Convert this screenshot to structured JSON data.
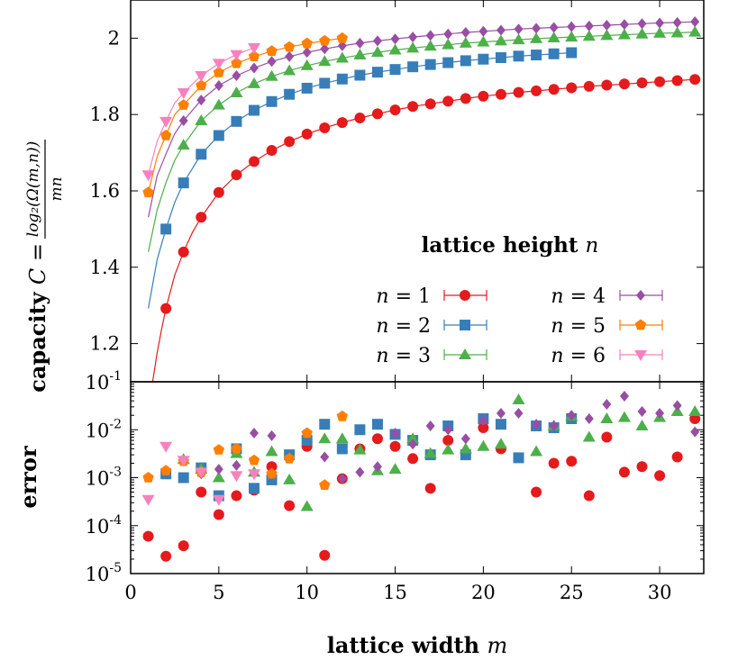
{
  "chart_data": [
    {
      "type": "line",
      "panel": "capacity",
      "ylabel_bold": "capacity",
      "ylabel_math": "C =",
      "ylabel_numerator": "log₂(Ω(m,n))",
      "ylabel_denominator": "mn",
      "xlim": [
        0,
        32.5
      ],
      "ylim": [
        1.1,
        2.1
      ],
      "yticks": [
        1.2,
        1.4,
        1.6,
        1.8,
        2
      ],
      "ytick_labels": [
        "1.2",
        "1.4",
        "1.6",
        "1.8",
        "2"
      ],
      "legend_title": "lattice height",
      "legend_title_var": "n",
      "legend_placement": "lower-right",
      "series": [
        {
          "name": "n = 1",
          "var": "n",
          "eq": "= 1",
          "color": "#e41a1c",
          "marker": "circle",
          "line_x": [
            1,
            1.25,
            1.5,
            1.75,
            2,
            2.5,
            3,
            3.5,
            4,
            5,
            6,
            7,
            8,
            9,
            10,
            11,
            12,
            13,
            14,
            15,
            16,
            17,
            18,
            19,
            20,
            21,
            22,
            23,
            24,
            25,
            26,
            27,
            28,
            29,
            30,
            31,
            32
          ],
          "line_y": [
            1.0,
            1.102,
            1.176,
            1.236,
            1.292,
            1.379,
            1.44,
            1.491,
            1.531,
            1.596,
            1.642,
            1.677,
            1.706,
            1.729,
            1.749,
            1.765,
            1.779,
            1.791,
            1.802,
            1.812,
            1.821,
            1.828,
            1.835,
            1.842,
            1.848,
            1.853,
            1.858,
            1.862,
            1.866,
            1.87,
            1.874,
            1.877,
            1.88,
            1.883,
            1.886,
            1.889,
            1.892
          ],
          "x": [
            2,
            3,
            4,
            5,
            6,
            7,
            8,
            9,
            10,
            11,
            12,
            13,
            14,
            15,
            16,
            17,
            18,
            19,
            20,
            21,
            22,
            23,
            24,
            25,
            26,
            27,
            28,
            29,
            30,
            31,
            32
          ],
          "y": [
            1.292,
            1.44,
            1.531,
            1.596,
            1.642,
            1.677,
            1.706,
            1.729,
            1.749,
            1.765,
            1.779,
            1.791,
            1.802,
            1.812,
            1.821,
            1.828,
            1.835,
            1.842,
            1.848,
            1.853,
            1.858,
            1.862,
            1.866,
            1.87,
            1.874,
            1.877,
            1.88,
            1.883,
            1.886,
            1.889,
            1.892
          ]
        },
        {
          "name": "n = 2",
          "var": "n",
          "eq": "= 2",
          "color": "#377eb8",
          "marker": "square",
          "line_x": [
            1,
            1.5,
            2,
            2.5,
            3,
            4,
            5,
            6,
            7,
            8,
            9,
            10,
            11,
            12,
            13,
            14,
            15,
            16,
            17,
            18,
            19,
            20,
            21,
            22,
            23,
            24,
            25
          ],
          "line_y": [
            1.292,
            1.42,
            1.5,
            1.57,
            1.621,
            1.696,
            1.745,
            1.782,
            1.811,
            1.834,
            1.853,
            1.869,
            1.882,
            1.893,
            1.903,
            1.911,
            1.918,
            1.925,
            1.931,
            1.936,
            1.941,
            1.945,
            1.949,
            1.953,
            1.956,
            1.959,
            1.962
          ],
          "x": [
            2,
            3,
            4,
            5,
            6,
            7,
            8,
            9,
            10,
            11,
            12,
            13,
            14,
            15,
            16,
            17,
            18,
            19,
            20,
            21,
            22,
            23,
            24,
            25
          ],
          "y": [
            1.5,
            1.621,
            1.696,
            1.745,
            1.782,
            1.811,
            1.834,
            1.853,
            1.869,
            1.882,
            1.893,
            1.903,
            1.911,
            1.918,
            1.925,
            1.931,
            1.936,
            1.941,
            1.945,
            1.949,
            1.953,
            1.956,
            1.959,
            1.962
          ]
        },
        {
          "name": "n = 3",
          "var": "n",
          "eq": "= 3",
          "color": "#4daf4a",
          "marker": "triangle-up",
          "line_x": [
            1,
            1.5,
            2,
            2.5,
            3,
            4,
            5,
            6,
            7,
            8,
            9,
            10,
            11,
            12,
            13,
            14,
            15,
            16,
            17,
            18,
            19,
            20,
            21,
            22,
            23,
            24,
            25,
            26,
            27,
            28,
            29,
            30,
            31,
            32
          ],
          "line_y": [
            1.44,
            1.55,
            1.621,
            1.68,
            1.72,
            1.784,
            1.825,
            1.857,
            1.881,
            1.9,
            1.915,
            1.928,
            1.939,
            1.948,
            1.956,
            1.963,
            1.969,
            1.974,
            1.979,
            1.983,
            1.987,
            1.99,
            1.993,
            1.996,
            1.999,
            2.001,
            2.003,
            2.005,
            2.007,
            2.009,
            2.011,
            2.013,
            2.014,
            2.016
          ],
          "x": [
            3,
            4,
            5,
            6,
            7,
            8,
            9,
            10,
            11,
            12,
            13,
            14,
            15,
            16,
            17,
            18,
            19,
            20,
            21,
            22,
            23,
            24,
            25,
            26,
            27,
            28,
            29,
            30,
            31,
            32
          ],
          "y": [
            1.72,
            1.784,
            1.825,
            1.857,
            1.881,
            1.9,
            1.915,
            1.928,
            1.939,
            1.948,
            1.956,
            1.963,
            1.969,
            1.974,
            1.979,
            1.983,
            1.987,
            1.99,
            1.993,
            1.996,
            1.999,
            2.001,
            2.003,
            2.005,
            2.007,
            2.009,
            2.011,
            2.013,
            2.014,
            2.016
          ]
        },
        {
          "name": "n = 4",
          "var": "n",
          "eq": "= 4",
          "color": "#984ea3",
          "marker": "diamond",
          "line_x": [
            1,
            1.5,
            2,
            2.5,
            3,
            4,
            5,
            6,
            7,
            8,
            9,
            10,
            11,
            12,
            13,
            14,
            15,
            16,
            17,
            18,
            19,
            20,
            21,
            22,
            23,
            24,
            25,
            26,
            27,
            28,
            29,
            30,
            31,
            32
          ],
          "line_y": [
            1.531,
            1.64,
            1.696,
            1.75,
            1.784,
            1.838,
            1.876,
            1.902,
            1.922,
            1.939,
            1.952,
            1.963,
            1.972,
            1.98,
            1.987,
            1.993,
            1.998,
            2.003,
            2.007,
            2.011,
            2.015,
            2.018,
            2.021,
            2.024,
            2.026,
            2.028,
            2.03,
            2.032,
            2.034,
            2.036,
            2.038,
            2.04,
            2.041,
            2.043
          ],
          "x": [
            3,
            4,
            5,
            6,
            7,
            8,
            9,
            10,
            11,
            12,
            13,
            14,
            15,
            16,
            17,
            18,
            19,
            20,
            21,
            22,
            23,
            24,
            25,
            26,
            27,
            28,
            29,
            30,
            31,
            32
          ],
          "y": [
            1.784,
            1.838,
            1.876,
            1.902,
            1.922,
            1.939,
            1.952,
            1.963,
            1.972,
            1.98,
            1.987,
            1.993,
            1.998,
            2.003,
            2.007,
            2.011,
            2.015,
            2.018,
            2.021,
            2.024,
            2.026,
            2.028,
            2.03,
            2.032,
            2.034,
            2.036,
            2.038,
            2.04,
            2.041,
            2.043
          ]
        },
        {
          "name": "n = 5",
          "var": "n",
          "eq": "= 5",
          "color": "#ff7f00",
          "marker": "pentagon",
          "line_x": [
            1,
            1.5,
            2,
            2.5,
            3,
            4,
            5,
            6,
            7,
            8,
            9,
            10,
            11,
            12
          ],
          "line_y": [
            1.596,
            1.69,
            1.745,
            1.8,
            1.825,
            1.876,
            1.91,
            1.934,
            1.952,
            1.966,
            1.977,
            1.986,
            1.993,
            2.0
          ],
          "x": [
            1,
            2,
            3,
            4,
            5,
            6,
            7,
            8,
            9,
            10,
            11,
            12
          ],
          "y": [
            1.596,
            1.745,
            1.825,
            1.876,
            1.91,
            1.934,
            1.952,
            1.966,
            1.977,
            1.986,
            1.993,
            2.0
          ]
        },
        {
          "name": "n = 6",
          "var": "n",
          "eq": "= 6",
          "color": "#f781bf",
          "marker": "triangle-down",
          "line_x": [
            1,
            1.5,
            2,
            2.5,
            3,
            4,
            5,
            6,
            7
          ],
          "line_y": [
            1.642,
            1.73,
            1.782,
            1.83,
            1.857,
            1.902,
            1.934,
            1.957,
            1.975
          ],
          "x": [
            1,
            2,
            3,
            4,
            5,
            6,
            7
          ],
          "y": [
            1.642,
            1.782,
            1.857,
            1.902,
            1.934,
            1.957,
            1.975
          ]
        }
      ]
    },
    {
      "type": "scatter",
      "panel": "error",
      "ylabel": "error",
      "xlabel": "lattice width",
      "xlabel_var": "m",
      "yscale": "log",
      "xlim": [
        0,
        32.5
      ],
      "ylim": [
        1e-05,
        0.1
      ],
      "xticks": [
        0,
        5,
        10,
        15,
        20,
        25,
        30
      ],
      "xtick_labels": [
        "0",
        "5",
        "10",
        "15",
        "20",
        "25",
        "30"
      ],
      "yticks": [
        1e-05,
        0.0001,
        0.001,
        0.01,
        0.1
      ],
      "ytick_base": "10",
      "ytick_exponents": [
        "-5",
        "-4",
        "-3",
        "-2",
        "-1"
      ],
      "series": [
        {
          "name": "n = 1",
          "color": "#e41a1c",
          "marker": "circle",
          "x": [
            1,
            2,
            3,
            4,
            5,
            6,
            7,
            8,
            9,
            10,
            11,
            12,
            13,
            14,
            15,
            16,
            17,
            18,
            20,
            21,
            23,
            24,
            25,
            26,
            27,
            28,
            29,
            30,
            31,
            32
          ],
          "y": [
            6e-05,
            2.3e-05,
            3.8e-05,
            0.0005,
            0.00017,
            0.00042,
            0.00055,
            0.0017,
            0.00026,
            0.0045,
            2.4e-05,
            0.00095,
            0.004,
            0.0065,
            0.0045,
            0.0025,
            0.0006,
            0.006,
            0.011,
            0.004,
            0.0005,
            0.002,
            0.0022,
            0.00042,
            0.007,
            0.0013,
            0.0017,
            0.0011,
            0.0027,
            0.017
          ]
        },
        {
          "name": "n = 2",
          "color": "#377eb8",
          "marker": "square",
          "x": [
            2,
            3,
            4,
            5,
            6,
            7,
            8,
            9,
            10,
            11,
            12,
            13,
            14,
            15,
            16,
            17,
            18,
            19,
            20,
            21,
            22,
            23,
            24,
            25
          ],
          "y": [
            0.0012,
            0.001,
            0.0016,
            0.00042,
            0.004,
            0.0006,
            0.0009,
            0.003,
            0.006,
            0.013,
            0.004,
            0.01,
            0.013,
            0.008,
            0.006,
            0.003,
            0.012,
            0.003,
            0.017,
            0.013,
            0.0026,
            0.012,
            0.011,
            0.017
          ]
        },
        {
          "name": "n = 3",
          "color": "#4daf4a",
          "marker": "triangle-up",
          "x": [
            3,
            4,
            5,
            6,
            7,
            8,
            9,
            10,
            11,
            12,
            13,
            14,
            15,
            16,
            17,
            18,
            19,
            20,
            21,
            22,
            23,
            24,
            25,
            26,
            27,
            28,
            29,
            30,
            31,
            32
          ],
          "y": [
            0.0024,
            0.0015,
            0.001,
            0.0032,
            0.0013,
            0.0035,
            0.0009,
            0.00025,
            0.0065,
            0.0065,
            0.0038,
            0.0014,
            0.0015,
            0.0065,
            0.0032,
            0.0038,
            0.004,
            0.0045,
            0.005,
            0.042,
            0.0035,
            0.012,
            0.019,
            0.007,
            0.017,
            0.018,
            0.012,
            0.018,
            0.024,
            0.024
          ]
        },
        {
          "name": "n = 4",
          "color": "#984ea3",
          "marker": "diamond",
          "x": [
            2,
            3,
            4,
            5,
            6,
            7,
            8,
            9,
            10,
            11,
            12,
            13,
            14,
            15,
            16,
            17,
            18,
            19,
            20,
            21,
            22,
            23,
            24,
            25,
            26,
            27,
            28,
            29,
            30,
            31,
            32
          ],
          "y": [
            0.0014,
            0.0022,
            0.0012,
            0.0015,
            0.0018,
            0.0085,
            0.0075,
            0.0025,
            0.0085,
            0.0027,
            0.00095,
            0.0013,
            0.0017,
            0.0085,
            0.005,
            0.012,
            0.01,
            0.0065,
            0.0155,
            0.022,
            0.022,
            0.013,
            0.012,
            0.02,
            0.017,
            0.034,
            0.05,
            0.024,
            0.022,
            0.032,
            0.009
          ]
        },
        {
          "name": "n = 5",
          "color": "#ff7f00",
          "marker": "pentagon",
          "x": [
            1,
            2,
            3,
            4,
            5,
            6,
            7,
            8,
            9,
            10,
            11,
            12
          ],
          "y": [
            0.001,
            0.0014,
            0.0022,
            0.0013,
            0.0038,
            0.004,
            0.0023,
            0.0012,
            0.0025,
            0.0085,
            0.0007,
            0.019
          ]
        },
        {
          "name": "n = 6",
          "color": "#f781bf",
          "marker": "triangle-down",
          "x": [
            1,
            2,
            3,
            4,
            5,
            6,
            7
          ],
          "y": [
            0.00035,
            0.0045,
            0.0023,
            0.0013,
            0.00035,
            0.0011,
            0.0012
          ]
        }
      ]
    }
  ]
}
